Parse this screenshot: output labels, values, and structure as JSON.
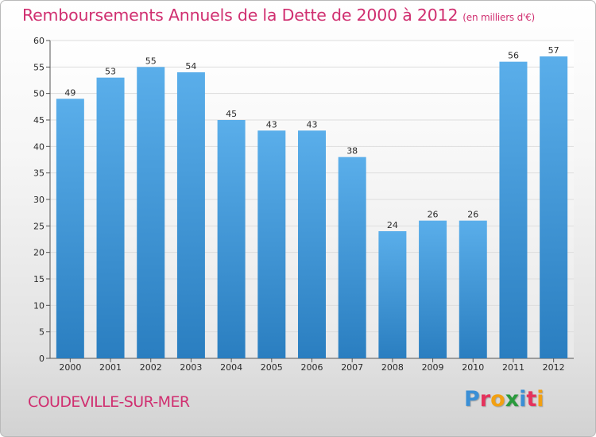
{
  "header": {
    "title": "Remboursements Annuels de la Dette de 2000 à 2012",
    "unit": "(en milliers d'€)"
  },
  "footer": {
    "place": "COUDEVILLE-SUR-MER",
    "logo": "Proxiti",
    "logo_colors": [
      "#3a8fd6",
      "#e5325c",
      "#f2a012",
      "#2a9a3c",
      "#3a8fd6",
      "#e5325c",
      "#f2a012"
    ]
  },
  "chart_data": {
    "type": "bar",
    "title": "Remboursements Annuels de la Dette de 2000 à 2012",
    "categories": [
      "2000",
      "2001",
      "2002",
      "2003",
      "2004",
      "2005",
      "2006",
      "2007",
      "2008",
      "2009",
      "2010",
      "2011",
      "2012"
    ],
    "values": [
      49,
      53,
      55,
      54,
      45,
      43,
      43,
      38,
      24,
      26,
      26,
      56,
      57
    ],
    "value_labels": [
      "49",
      "53",
      "55",
      "54",
      "45",
      "43",
      "43",
      "38",
      "24",
      "26",
      "26",
      "56",
      "57"
    ],
    "ylim": [
      0,
      60
    ],
    "yticks": [
      0,
      5,
      10,
      15,
      20,
      25,
      30,
      35,
      40,
      45,
      50,
      55,
      60
    ],
    "ytick_labels": [
      "0",
      "5",
      "10",
      "15",
      "20",
      "25",
      "30",
      "35",
      "40",
      "45",
      "50",
      "55",
      "60"
    ],
    "xlabel": "",
    "ylabel": "",
    "grid": true,
    "bar_color_top": "#5aaeea",
    "bar_color_bottom": "#2a7ec0"
  }
}
